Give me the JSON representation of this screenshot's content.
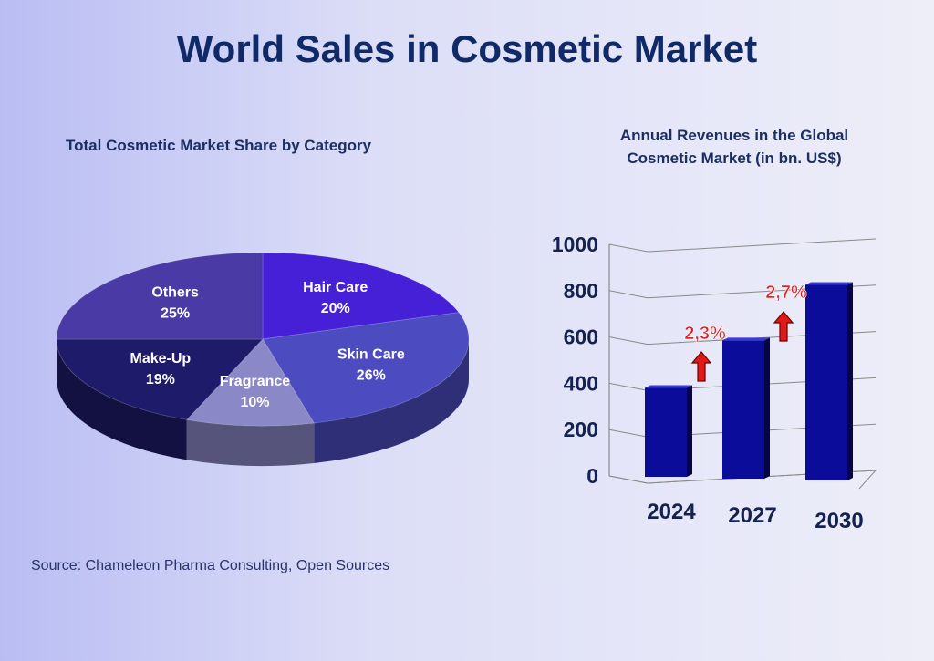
{
  "title": "World Sales in Cosmetic Market",
  "source": "Source: Chameleon Pharma Consulting, Open Sources",
  "chart_data": [
    {
      "type": "pie",
      "title": "Total Cosmetic Market Share by Category",
      "slices": [
        {
          "label": "Hair Care",
          "value": 20,
          "display": "20%",
          "color": "#4520d6"
        },
        {
          "label": "Skin Care",
          "value": 26,
          "display": "26%",
          "color": "#4c4cc0"
        },
        {
          "label": "Fragrance",
          "value": 10,
          "display": "10%",
          "color": "#8a88c6"
        },
        {
          "label": "Make-Up",
          "value": 19,
          "display": "19%",
          "color": "#1e1c6a"
        },
        {
          "label": "Others",
          "value": 25,
          "display": "25%",
          "color": "#4a3aa6"
        }
      ]
    },
    {
      "type": "bar",
      "title_lines": [
        "Annual Revenues in the Global",
        "Cosmetic Market (in bn. US$)"
      ],
      "categories": [
        "2024",
        "2027",
        "2030"
      ],
      "values": [
        380,
        585,
        825
      ],
      "ylim": [
        0,
        1000
      ],
      "yticks": [
        0,
        200,
        400,
        600,
        800,
        1000
      ],
      "grid": true,
      "bar_color": "#0c0c9a",
      "growth_annotations": [
        {
          "label": "2,3%",
          "between": [
            "2024",
            "2027"
          ]
        },
        {
          "label": "2,7%",
          "between": [
            "2027",
            "2030"
          ]
        }
      ],
      "arrow_color": "#e01818"
    }
  ]
}
